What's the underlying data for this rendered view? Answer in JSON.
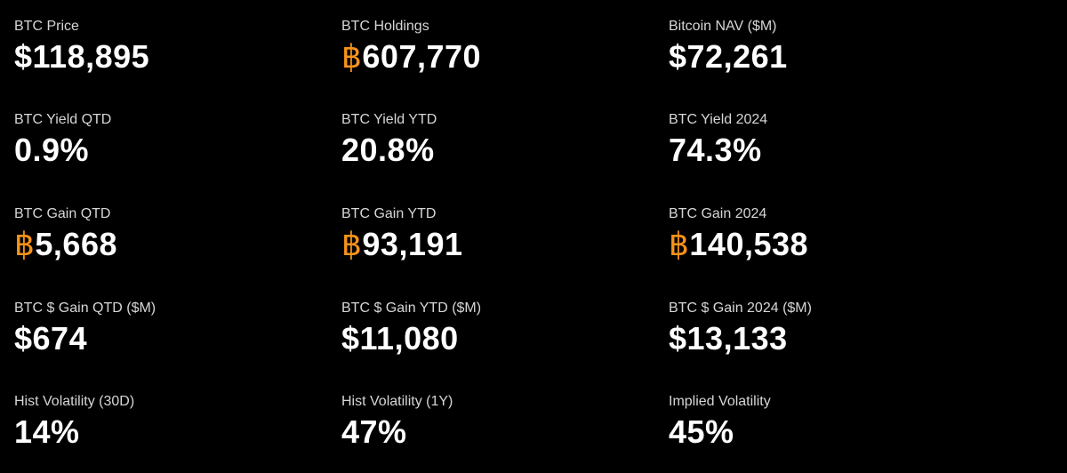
{
  "colors": {
    "background": "#000000",
    "label": "#d6d6d6",
    "value": "#ffffff",
    "btc_accent": "#f7931a"
  },
  "btc_symbol": "฿",
  "metrics": {
    "btc_price": {
      "label": "BTC Price",
      "value": "$118,895"
    },
    "btc_holdings": {
      "label": "BTC Holdings",
      "value": "607,770"
    },
    "bitcoin_nav": {
      "label": "Bitcoin NAV ($M)",
      "value": "$72,261"
    },
    "btc_yield_qtd": {
      "label": "BTC Yield QTD",
      "value": "0.9%"
    },
    "btc_yield_ytd": {
      "label": "BTC Yield YTD",
      "value": "20.8%"
    },
    "btc_yield_2024": {
      "label": "BTC Yield 2024",
      "value": "74.3%"
    },
    "btc_gain_qtd": {
      "label": "BTC Gain QTD",
      "value": "5,668"
    },
    "btc_gain_ytd": {
      "label": "BTC Gain YTD",
      "value": "93,191"
    },
    "btc_gain_2024": {
      "label": "BTC Gain 2024",
      "value": "140,538"
    },
    "btc_usd_gain_qtd": {
      "label": "BTC $ Gain QTD ($M)",
      "value": "$674"
    },
    "btc_usd_gain_ytd": {
      "label": "BTC $ Gain YTD ($M)",
      "value": "$11,080"
    },
    "btc_usd_gain_2024": {
      "label": "BTC $ Gain 2024 ($M)",
      "value": "$13,133"
    },
    "hist_vol_30d": {
      "label": "Hist Volatility (30D)",
      "value": "14%"
    },
    "hist_vol_1y": {
      "label": "Hist Volatility (1Y)",
      "value": "47%"
    },
    "implied_vol": {
      "label": "Implied Volatility",
      "value": "45%"
    }
  }
}
